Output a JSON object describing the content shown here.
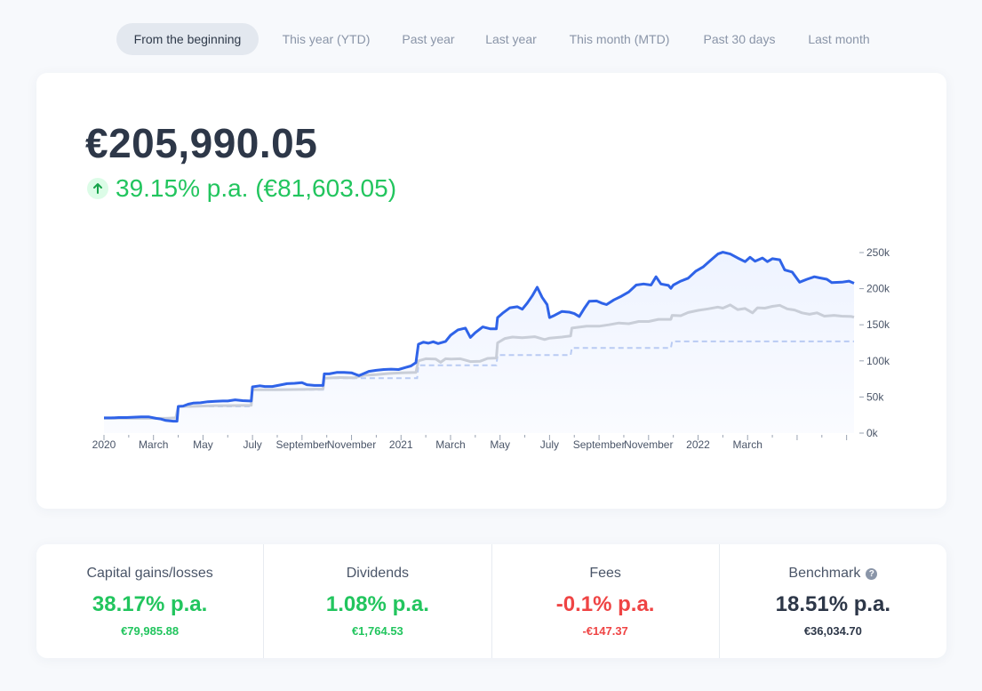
{
  "tabs": [
    {
      "label": "From the beginning",
      "active": true
    },
    {
      "label": "This year (YTD)",
      "active": false
    },
    {
      "label": "Past year",
      "active": false
    },
    {
      "label": "Last year",
      "active": false
    },
    {
      "label": "This month (MTD)",
      "active": false
    },
    {
      "label": "Past 30 days",
      "active": false
    },
    {
      "label": "Last month",
      "active": false
    }
  ],
  "summary": {
    "total": "€205,990.05",
    "gain": "39.15% p.a. (€81,603.05)",
    "gain_icon": "arrow-up-icon"
  },
  "stats": [
    {
      "label": "Capital gains/losses",
      "value": "38.17% p.a.",
      "sub": "€79,985.88",
      "color": "#22c55e"
    },
    {
      "label": "Dividends",
      "value": "1.08% p.a.",
      "sub": "€1,764.53",
      "color": "#22c55e"
    },
    {
      "label": "Fees",
      "value": "-0.1% p.a.",
      "sub": "-€147.37",
      "color": "#ef4444"
    },
    {
      "label": "Benchmark",
      "value": "18.51% p.a.",
      "sub": "€36,034.70",
      "color": "#2d3748",
      "icon": "help-circle-icon"
    }
  ],
  "chart_data": {
    "type": "line",
    "x_tick_labels": [
      "2020",
      "March",
      "May",
      "July",
      "September",
      "November",
      "2021",
      "March",
      "May",
      "July",
      "September",
      "November",
      "2022",
      "March"
    ],
    "y_tick_labels": [
      "250k",
      "200k",
      "150k",
      "100k",
      "50k",
      "0k"
    ],
    "ylim": [
      0,
      250000
    ],
    "x_unit": "months since January 2020",
    "colors": {
      "portfolio": "#2f63e8",
      "benchmark": "#c9ced8",
      "invested": "#b9cbf3",
      "fill": "#eef3ff"
    },
    "series": [
      {
        "key": "portfolio",
        "points": [
          [
            0,
            21000
          ],
          [
            0.3,
            21000
          ],
          [
            0.6,
            21500
          ],
          [
            0.9,
            21500
          ],
          [
            1.2,
            22000
          ],
          [
            1.5,
            22500
          ],
          [
            1.8,
            22500
          ],
          [
            2.1,
            20500
          ],
          [
            2.3,
            19500
          ],
          [
            2.5,
            17500
          ],
          [
            2.8,
            16500
          ],
          [
            2.95,
            16500
          ],
          [
            3.0,
            37000
          ],
          [
            3.2,
            37500
          ],
          [
            3.4,
            40000
          ],
          [
            3.6,
            41500
          ],
          [
            3.9,
            42000
          ],
          [
            4.2,
            43500
          ],
          [
            4.5,
            44000
          ],
          [
            4.8,
            44500
          ],
          [
            5.0,
            44500
          ],
          [
            5.3,
            46000
          ],
          [
            5.6,
            45000
          ],
          [
            5.9,
            44500
          ],
          [
            5.95,
            44500
          ],
          [
            6.0,
            64000
          ],
          [
            6.3,
            65500
          ],
          [
            6.5,
            64500
          ],
          [
            6.8,
            64500
          ],
          [
            7.1,
            66500
          ],
          [
            7.4,
            68500
          ],
          [
            7.7,
            69000
          ],
          [
            8.0,
            70000
          ],
          [
            8.2,
            67000
          ],
          [
            8.5,
            66000
          ],
          [
            8.85,
            66000
          ],
          [
            8.9,
            82000
          ],
          [
            9.1,
            82000
          ],
          [
            9.4,
            84000
          ],
          [
            9.7,
            84000
          ],
          [
            10.0,
            83500
          ],
          [
            10.3,
            79500
          ],
          [
            10.5,
            82500
          ],
          [
            10.7,
            85500
          ],
          [
            11.0,
            87000
          ],
          [
            11.3,
            88000
          ],
          [
            11.6,
            88500
          ],
          [
            11.9,
            88000
          ],
          [
            12.2,
            91000
          ],
          [
            12.4,
            93000
          ],
          [
            12.6,
            97500
          ],
          [
            12.7,
            123000
          ],
          [
            12.9,
            126000
          ],
          [
            13.1,
            124500
          ],
          [
            13.3,
            126500
          ],
          [
            13.5,
            124000
          ],
          [
            13.8,
            127000
          ],
          [
            14.0,
            135500
          ],
          [
            14.3,
            143000
          ],
          [
            14.6,
            145500
          ],
          [
            14.8,
            132500
          ],
          [
            15.0,
            139000
          ],
          [
            15.3,
            147000
          ],
          [
            15.6,
            144500
          ],
          [
            15.85,
            144500
          ],
          [
            15.9,
            160000
          ],
          [
            16.1,
            166000
          ],
          [
            16.4,
            173500
          ],
          [
            16.7,
            175000
          ],
          [
            16.9,
            171500
          ],
          [
            17.1,
            180000
          ],
          [
            17.3,
            190000
          ],
          [
            17.5,
            202000
          ],
          [
            17.7,
            188000
          ],
          [
            17.9,
            178000
          ],
          [
            18.0,
            160000
          ],
          [
            18.2,
            163000
          ],
          [
            18.5,
            168500
          ],
          [
            18.8,
            167500
          ],
          [
            19.0,
            165500
          ],
          [
            19.2,
            161500
          ],
          [
            19.4,
            172500
          ],
          [
            19.6,
            182500
          ],
          [
            19.9,
            183000
          ],
          [
            20.1,
            180000
          ],
          [
            20.3,
            178000
          ],
          [
            20.6,
            184500
          ],
          [
            20.9,
            189500
          ],
          [
            21.2,
            195500
          ],
          [
            21.5,
            205000
          ],
          [
            21.8,
            206500
          ],
          [
            22.1,
            205000
          ],
          [
            22.3,
            216500
          ],
          [
            22.5,
            206500
          ],
          [
            22.8,
            204500
          ],
          [
            22.9,
            200500
          ],
          [
            23.0,
            205000
          ],
          [
            23.3,
            210500
          ],
          [
            23.6,
            214500
          ],
          [
            23.9,
            224000
          ],
          [
            24.2,
            230000
          ],
          [
            24.5,
            239000
          ],
          [
            24.8,
            248000
          ],
          [
            25.0,
            250500
          ],
          [
            25.3,
            248000
          ],
          [
            25.6,
            242500
          ],
          [
            25.9,
            237500
          ],
          [
            26.1,
            243500
          ],
          [
            26.3,
            238000
          ],
          [
            26.6,
            242500
          ],
          [
            26.8,
            237500
          ],
          [
            27.0,
            241500
          ],
          [
            27.3,
            240000
          ],
          [
            27.5,
            226000
          ],
          [
            27.8,
            223000
          ],
          [
            28.1,
            209000
          ],
          [
            28.4,
            213000
          ],
          [
            28.7,
            216500
          ],
          [
            28.9,
            215000
          ],
          [
            29.2,
            213000
          ],
          [
            29.4,
            208500
          ],
          [
            29.8,
            209000
          ],
          [
            30.1,
            210500
          ],
          [
            30.3,
            207500
          ]
        ]
      },
      {
        "key": "benchmark",
        "points": [
          [
            0,
            20500
          ],
          [
            2.5,
            20500
          ],
          [
            2.9,
            21000
          ],
          [
            3.0,
            37000
          ],
          [
            3.5,
            37000
          ],
          [
            4.5,
            38000
          ],
          [
            5.0,
            38000
          ],
          [
            5.95,
            38500
          ],
          [
            6.0,
            60000
          ],
          [
            7.0,
            60000
          ],
          [
            8.0,
            60500
          ],
          [
            8.85,
            61000
          ],
          [
            8.9,
            76000
          ],
          [
            9.5,
            77000
          ],
          [
            10.1,
            76500
          ],
          [
            10.5,
            80000
          ],
          [
            11.0,
            81000
          ],
          [
            11.5,
            82500
          ],
          [
            12.0,
            83500
          ],
          [
            12.6,
            84000
          ],
          [
            12.7,
            100000
          ],
          [
            13.0,
            103000
          ],
          [
            13.4,
            102500
          ],
          [
            13.6,
            98000
          ],
          [
            13.8,
            103000
          ],
          [
            14.0,
            102500
          ],
          [
            14.4,
            103000
          ],
          [
            14.8,
            99000
          ],
          [
            15.2,
            99500
          ],
          [
            15.5,
            103500
          ],
          [
            15.85,
            104000
          ],
          [
            15.9,
            125000
          ],
          [
            16.2,
            131000
          ],
          [
            16.5,
            133000
          ],
          [
            16.9,
            132000
          ],
          [
            17.4,
            133500
          ],
          [
            17.8,
            129500
          ],
          [
            18.0,
            131500
          ],
          [
            18.5,
            133000
          ],
          [
            18.85,
            134500
          ],
          [
            18.9,
            145500
          ],
          [
            19.5,
            148000
          ],
          [
            20.0,
            148000
          ],
          [
            20.4,
            150000
          ],
          [
            20.8,
            152500
          ],
          [
            21.2,
            151500
          ],
          [
            21.6,
            154500
          ],
          [
            22.0,
            154500
          ],
          [
            22.4,
            157500
          ],
          [
            22.9,
            157500
          ],
          [
            22.95,
            163000
          ],
          [
            23.3,
            162500
          ],
          [
            23.6,
            167000
          ],
          [
            24.0,
            170000
          ],
          [
            24.4,
            172000
          ],
          [
            24.8,
            174500
          ],
          [
            25.0,
            173000
          ],
          [
            25.3,
            177500
          ],
          [
            25.6,
            171000
          ],
          [
            25.9,
            172500
          ],
          [
            26.2,
            166500
          ],
          [
            26.4,
            173500
          ],
          [
            26.7,
            173000
          ],
          [
            27.0,
            175500
          ],
          [
            27.3,
            177000
          ],
          [
            27.6,
            172000
          ],
          [
            27.9,
            170500
          ],
          [
            28.2,
            166500
          ],
          [
            28.5,
            164500
          ],
          [
            28.8,
            166500
          ],
          [
            29.1,
            162000
          ],
          [
            29.5,
            163000
          ],
          [
            29.8,
            162000
          ],
          [
            30.2,
            161500
          ],
          [
            30.3,
            160500
          ]
        ]
      },
      {
        "key": "invested",
        "step": true,
        "points": [
          [
            0,
            20500
          ],
          [
            2.95,
            20500
          ],
          [
            3.0,
            37000
          ],
          [
            5.95,
            37000
          ],
          [
            6.0,
            60000
          ],
          [
            8.85,
            60000
          ],
          [
            8.9,
            76000
          ],
          [
            12.65,
            76000
          ],
          [
            12.7,
            94000
          ],
          [
            15.85,
            94000
          ],
          [
            15.9,
            108000
          ],
          [
            18.85,
            108000
          ],
          [
            18.9,
            118000
          ],
          [
            22.9,
            118000
          ],
          [
            22.95,
            127000
          ],
          [
            30.3,
            127000
          ]
        ]
      }
    ]
  }
}
